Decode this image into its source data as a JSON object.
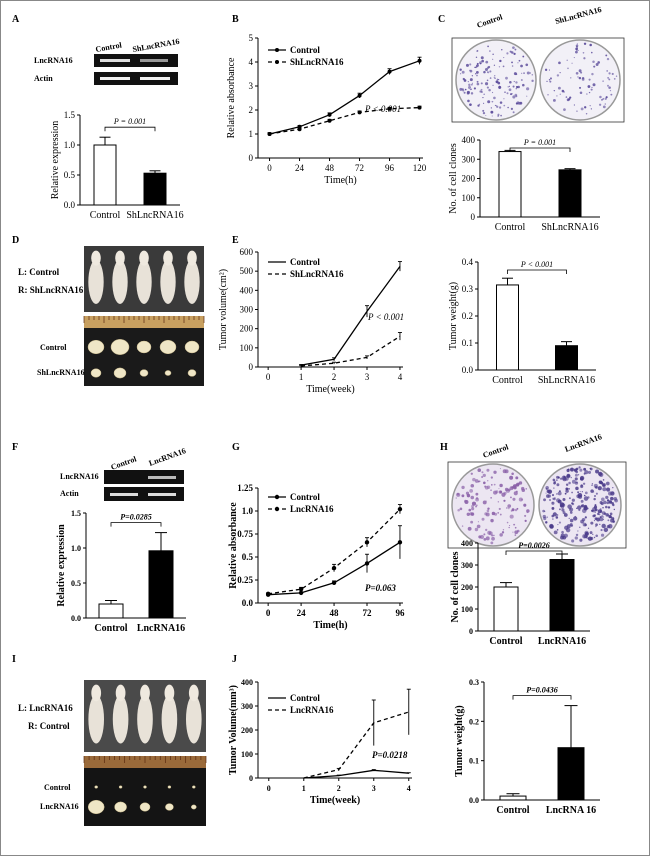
{
  "panel_letters": [
    "A",
    "B",
    "C",
    "D",
    "E",
    "F",
    "G",
    "H",
    "I",
    "J"
  ],
  "colors": {
    "ink": "#000000",
    "bar_black": "#000000",
    "bar_white": "#ffffff",
    "plate_stain": "#6a5aa6",
    "mouse": "#e6e0d6",
    "tumor": "#efe7c9"
  },
  "photo_labels": {
    "A": {
      "rows": [
        "LncRNA16",
        "Actin"
      ],
      "cols": [
        "Control",
        "ShLncRNA16"
      ]
    },
    "C": {
      "cols": [
        "Control",
        "ShLncRNA16"
      ]
    },
    "D": {
      "lines": [
        "L: Control",
        "R: ShLncRNA16"
      ],
      "rows": [
        "Control",
        "ShLncRNA16"
      ]
    },
    "F": {
      "rows": [
        "LncRNA16",
        "Actin"
      ],
      "cols": [
        "Control",
        "LncRNA16"
      ]
    },
    "H": {
      "cols": [
        "Control",
        "LncRNA16"
      ]
    },
    "I": {
      "lines": [
        "L: LncRNA16",
        "R: Control"
      ],
      "rows": [
        "Control",
        "LncRNA16"
      ]
    }
  },
  "chart_data": [
    {
      "id": "A",
      "type": "bar",
      "categories": [
        "Control",
        "ShLncRNA16"
      ],
      "values": [
        1.0,
        0.53
      ],
      "errors": [
        0.13,
        0.04
      ],
      "fills": [
        "white",
        "black"
      ],
      "ylabel": "Relative expression",
      "ylim": [
        0,
        1.5
      ],
      "yticks": [
        "0.0",
        "0.5",
        "1.0",
        "1.5"
      ],
      "annotation": "P = 0.001"
    },
    {
      "id": "B",
      "type": "line",
      "x": [
        0,
        24,
        48,
        72,
        96,
        120
      ],
      "xticks": [
        "0",
        "24",
        "48",
        "72",
        "96",
        "120"
      ],
      "xlabel": "Time(h)",
      "ylabel": "Relative absorbance",
      "ylim": [
        0,
        5
      ],
      "yticks": [
        "0",
        "1",
        "2",
        "3",
        "4",
        "5"
      ],
      "series": [
        {
          "name": "Control",
          "values": [
            1.0,
            1.3,
            1.8,
            2.6,
            3.6,
            4.05
          ],
          "errors": [
            0.05,
            0.05,
            0.08,
            0.1,
            0.12,
            0.15
          ],
          "dash": false
        },
        {
          "name": "ShLncRNA16",
          "values": [
            1.0,
            1.2,
            1.55,
            1.9,
            2.05,
            2.1
          ],
          "errors": [
            0.05,
            0.05,
            0.06,
            0.06,
            0.06,
            0.06
          ],
          "dash": true
        }
      ],
      "annotation": "P < 0.001"
    },
    {
      "id": "C",
      "type": "bar",
      "categories": [
        "Control",
        "ShLncRNA16"
      ],
      "values": [
        340,
        245
      ],
      "errors": [
        6,
        6
      ],
      "fills": [
        "white",
        "black"
      ],
      "ylabel": "No. of cell clones",
      "ylim": [
        0,
        400
      ],
      "yticks": [
        "0",
        "100",
        "200",
        "300",
        "400"
      ],
      "annotation": "P = 0.001"
    },
    {
      "id": "E1",
      "type": "line",
      "x": [
        0,
        1,
        2,
        3,
        4
      ],
      "xticks": [
        "0",
        "1",
        "2",
        "3",
        "4"
      ],
      "xlabel": "Time(week)",
      "ylabel": "Tumor volume(cm²)",
      "ylim": [
        0,
        600
      ],
      "yticks": [
        "0",
        "100",
        "200",
        "300",
        "400",
        "500",
        "600"
      ],
      "series": [
        {
          "name": "Control",
          "values": [
            null,
            10,
            40,
            290,
            525
          ],
          "errors": [
            null,
            3,
            8,
            30,
            25
          ],
          "dash": false
        },
        {
          "name": "ShLncRNA16",
          "values": [
            null,
            5,
            20,
            50,
            160
          ],
          "errors": [
            null,
            2,
            5,
            8,
            20
          ],
          "dash": true
        }
      ],
      "annotation": "P < 0.001"
    },
    {
      "id": "E2",
      "type": "bar",
      "categories": [
        "Control",
        "ShLncRNA16"
      ],
      "values": [
        0.315,
        0.09
      ],
      "errors": [
        0.025,
        0.015
      ],
      "fills": [
        "white",
        "black"
      ],
      "ylabel": "Tumor weight(g)",
      "ylim": [
        0,
        0.4
      ],
      "yticks": [
        "0.0",
        "0.1",
        "0.2",
        "0.3",
        "0.4"
      ],
      "annotation": "P < 0.001"
    },
    {
      "id": "F",
      "type": "bar",
      "categories": [
        "Control",
        "LncRNA16"
      ],
      "values": [
        0.2,
        0.96
      ],
      "errors": [
        0.05,
        0.26
      ],
      "fills": [
        "white",
        "black"
      ],
      "ylabel": "Relative  expression",
      "ylim": [
        0,
        1.5
      ],
      "yticks": [
        "0.0",
        "0.5",
        "1.0",
        "1.5"
      ],
      "annotation": "P=0.0285"
    },
    {
      "id": "G",
      "type": "line",
      "x": [
        0,
        24,
        48,
        72,
        96
      ],
      "xticks": [
        "0",
        "24",
        "48",
        "72",
        "96"
      ],
      "xlabel": "Time(h)",
      "ylabel": "Relative absorbance",
      "ylim": [
        0,
        1.25
      ],
      "yticks": [
        "0.0",
        "0.25",
        "0.5",
        "0.75",
        "1.0",
        "1.25"
      ],
      "series": [
        {
          "name": "Control",
          "values": [
            0.09,
            0.11,
            0.22,
            0.43,
            0.66
          ],
          "errors": [
            0.01,
            0.01,
            0.02,
            0.1,
            0.18
          ],
          "dash": false
        },
        {
          "name": "LncRNA16",
          "values": [
            0.1,
            0.15,
            0.38,
            0.66,
            1.02
          ],
          "errors": [
            0.01,
            0.02,
            0.04,
            0.05,
            0.05
          ],
          "dash": true
        }
      ],
      "annotation": "P=0.063"
    },
    {
      "id": "H",
      "type": "bar",
      "categories": [
        "Control",
        "LncRNA16"
      ],
      "values": [
        200,
        325
      ],
      "errors": [
        20,
        25
      ],
      "fills": [
        "white",
        "black"
      ],
      "ylabel": "No. of cell clones",
      "ylim": [
        0,
        400
      ],
      "yticks": [
        "0",
        "100",
        "200",
        "300",
        "400"
      ],
      "annotation": "P=0.0026"
    },
    {
      "id": "J1",
      "type": "line",
      "x": [
        0,
        1,
        2,
        3,
        4
      ],
      "xticks": [
        "0",
        "1",
        "2",
        "3",
        "4"
      ],
      "xlabel": "Time(week)",
      "ylabel": "Tumor Volume(mm³)",
      "ylim": [
        0,
        400
      ],
      "yticks": [
        "0",
        "100",
        "200",
        "300",
        "400"
      ],
      "series": [
        {
          "name": "Control",
          "values": [
            null,
            0,
            10,
            32,
            20
          ],
          "errors": [
            null,
            0,
            2,
            3,
            2
          ],
          "dash": false
        },
        {
          "name": "LncRNA16",
          "values": [
            null,
            0,
            35,
            230,
            275
          ],
          "errors": [
            null,
            0,
            5,
            95,
            95
          ],
          "dash": true
        }
      ],
      "annotation": "P=0.0218"
    },
    {
      "id": "J2",
      "type": "bar",
      "categories": [
        "Control",
        "LncRNA 16"
      ],
      "values": [
        0.01,
        0.133
      ],
      "errors": [
        0.006,
        0.107
      ],
      "fills": [
        "white",
        "black"
      ],
      "ylabel": "Tumor weight(g)",
      "ylim": [
        0,
        0.3
      ],
      "yticks": [
        "0.0",
        "0.1",
        "0.2",
        "0.3"
      ],
      "annotation": "P=0.0436"
    }
  ]
}
